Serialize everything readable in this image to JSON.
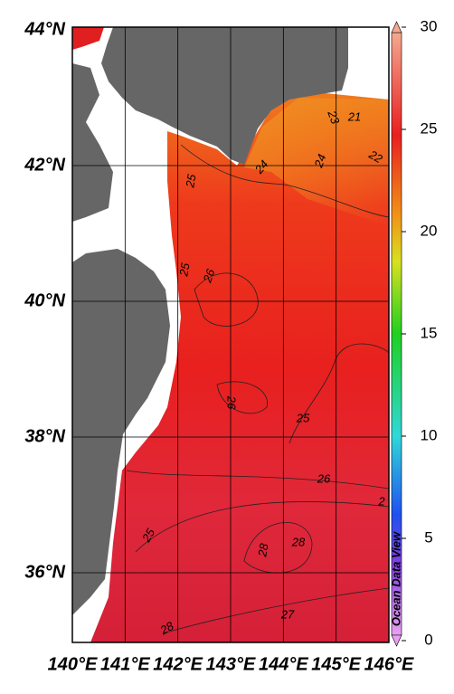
{
  "map": {
    "lat_labels": [
      "44°N",
      "42°N",
      "40°N",
      "38°N",
      "36°N"
    ],
    "lon_labels": [
      "140°E",
      "141°E",
      "142°E",
      "143°E",
      "144°E",
      "145°E",
      "146°E"
    ],
    "contour_labels": [
      "23",
      "21",
      "22",
      "24",
      "24",
      "25",
      "25",
      "26",
      "26",
      "25",
      "26",
      "2",
      "25",
      "28",
      "28",
      "27",
      "28"
    ],
    "colorbar": {
      "range": [
        0,
        30
      ],
      "ticks": [
        0,
        5,
        10,
        15,
        20,
        25,
        30
      ]
    },
    "credit": "Ocean Data View"
  }
}
